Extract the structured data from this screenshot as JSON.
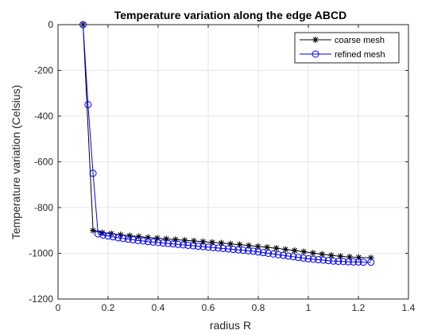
{
  "chart_data": {
    "type": "line",
    "title": "Temperature variation along the edge ABCD",
    "xlabel": "radius R",
    "ylabel": "Temperature variation (Celsius)",
    "xlim": [
      0,
      1.4
    ],
    "ylim": [
      -1200,
      0
    ],
    "xticks": [
      0,
      0.2,
      0.4,
      0.6,
      0.8,
      1,
      1.2,
      1.4
    ],
    "xtick_labels": [
      "0",
      "0.2",
      "0.4",
      "0.6",
      "0.8",
      "1",
      "1.2",
      "1.4"
    ],
    "yticks": [
      -1200,
      -1000,
      -800,
      -600,
      -400,
      -200,
      0
    ],
    "ytick_labels": [
      "-1200",
      "-1000",
      "-800",
      "-600",
      "-400",
      "-200",
      "0"
    ],
    "grid": true,
    "legend_position": "top-right",
    "series": [
      {
        "name": "coarse mesh",
        "color": "#000000",
        "marker": "asterisk",
        "x": [
          0.1,
          0.14,
          0.1766,
          0.2132,
          0.2498,
          0.2864,
          0.323,
          0.3596,
          0.3962,
          0.4328,
          0.4694,
          0.506,
          0.5426,
          0.5792,
          0.6158,
          0.6524,
          0.689,
          0.7256,
          0.7622,
          0.7988,
          0.8354,
          0.872,
          0.9086,
          0.9452,
          0.9818,
          1.0184,
          1.055,
          1.0916,
          1.1282,
          1.1648,
          1.2014,
          1.25
        ],
        "y": [
          0,
          -900,
          -910,
          -914,
          -919,
          -923,
          -927,
          -931,
          -934,
          -937,
          -940,
          -943,
          -946,
          -949,
          -952,
          -955,
          -959,
          -962,
          -966,
          -970,
          -974,
          -978,
          -983,
          -988,
          -993,
          -999,
          -1004,
          -1009,
          -1013,
          -1016,
          -1018,
          -1020
        ]
      },
      {
        "name": "refined mesh",
        "color": "#0000ff",
        "marker": "circle",
        "x": [
          0.1,
          0.12,
          0.14,
          0.16,
          0.18,
          0.2,
          0.22,
          0.24,
          0.26,
          0.28,
          0.3,
          0.32,
          0.34,
          0.36,
          0.38,
          0.4,
          0.42,
          0.44,
          0.46,
          0.48,
          0.5,
          0.52,
          0.54,
          0.56,
          0.58,
          0.6,
          0.62,
          0.64,
          0.66,
          0.68,
          0.7,
          0.72,
          0.74,
          0.76,
          0.78,
          0.8,
          0.82,
          0.84,
          0.86,
          0.88,
          0.9,
          0.92,
          0.94,
          0.96,
          0.98,
          1.0,
          1.02,
          1.04,
          1.06,
          1.08,
          1.1,
          1.12,
          1.14,
          1.16,
          1.18,
          1.2,
          1.22,
          1.25
        ],
        "y": [
          0,
          -350,
          -650,
          -915,
          -920,
          -924,
          -928,
          -932,
          -935,
          -938,
          -941,
          -944,
          -946,
          -949,
          -951,
          -953,
          -955,
          -957,
          -959,
          -961,
          -963,
          -965,
          -967,
          -969,
          -971,
          -973,
          -975,
          -977,
          -979,
          -981,
          -983,
          -985,
          -987,
          -989,
          -991,
          -994,
          -997,
          -1000,
          -1003,
          -1006,
          -1009,
          -1012,
          -1015,
          -1018,
          -1021,
          -1024,
          -1026,
          -1028,
          -1030,
          -1032,
          -1034,
          -1035,
          -1036,
          -1037,
          -1038,
          -1038,
          -1039,
          -1039
        ]
      }
    ]
  }
}
